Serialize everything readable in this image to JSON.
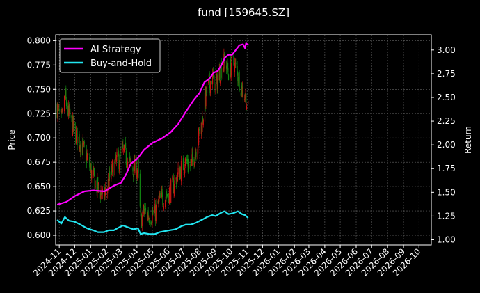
{
  "chart_data": {
    "type": "candlestick-line",
    "title": "fund [159645.SZ]",
    "xlabel": "",
    "ylabel_left": "Price",
    "ylabel_right": "Return",
    "xlim": [
      "2024-10-25",
      "2026-10-25"
    ],
    "ylim_left": [
      0.59,
      0.806
    ],
    "ylim_right": [
      0.945,
      3.16
    ],
    "x_ticks": [
      "2024-11",
      "2024-12",
      "2025-01",
      "2025-02",
      "2025-03",
      "2025-04",
      "2025-05",
      "2025-06",
      "2025-07",
      "2025-08",
      "2025-09",
      "2025-10",
      "2025-11",
      "2025-12",
      "2026-01",
      "2026-02",
      "2026-03",
      "2026-04",
      "2026-05",
      "2026-06",
      "2026-07",
      "2026-08",
      "2026-09",
      "2026-10"
    ],
    "y_ticks_left": [
      "0.600",
      "0.625",
      "0.650",
      "0.675",
      "0.700",
      "0.725",
      "0.750",
      "0.775",
      "0.800"
    ],
    "y_ticks_right": [
      "1.00",
      "1.25",
      "1.50",
      "1.75",
      "2.00",
      "2.25",
      "2.50",
      "2.75",
      "3.00"
    ],
    "grid": true,
    "legend_position": "top-left",
    "colors": {
      "background": "#000000",
      "up": "#cc1111",
      "down": "#118811",
      "ai": "#ff00ff",
      "bh": "#22e5f0",
      "grid": "#666666"
    },
    "price_close_anchors": [
      [
        "2024-10-28",
        0.732
      ],
      [
        "2024-11-05",
        0.715
      ],
      [
        "2024-11-12",
        0.742
      ],
      [
        "2024-11-20",
        0.722
      ],
      [
        "2024-12-01",
        0.706
      ],
      [
        "2024-12-12",
        0.695
      ],
      [
        "2024-12-25",
        0.68
      ],
      [
        "2025-01-06",
        0.658
      ],
      [
        "2025-01-15",
        0.648
      ],
      [
        "2025-01-27",
        0.64
      ],
      [
        "2025-02-05",
        0.655
      ],
      [
        "2025-02-15",
        0.672
      ],
      [
        "2025-02-25",
        0.678
      ],
      [
        "2025-03-05",
        0.685
      ],
      [
        "2025-03-15",
        0.675
      ],
      [
        "2025-03-25",
        0.668
      ],
      [
        "2025-04-03",
        0.668
      ],
      [
        "2025-04-08",
        0.615
      ],
      [
        "2025-04-15",
        0.624
      ],
      [
        "2025-04-25",
        0.62
      ],
      [
        "2025-05-06",
        0.622
      ],
      [
        "2025-05-15",
        0.635
      ],
      [
        "2025-05-25",
        0.64
      ],
      [
        "2025-06-03",
        0.645
      ],
      [
        "2025-06-15",
        0.655
      ],
      [
        "2025-06-25",
        0.668
      ],
      [
        "2025-07-05",
        0.676
      ],
      [
        "2025-07-15",
        0.67
      ],
      [
        "2025-07-25",
        0.69
      ],
      [
        "2025-08-05",
        0.715
      ],
      [
        "2025-08-15",
        0.75
      ],
      [
        "2025-08-25",
        0.762
      ],
      [
        "2025-09-01",
        0.752
      ],
      [
        "2025-09-10",
        0.77
      ],
      [
        "2025-09-18",
        0.778
      ],
      [
        "2025-09-26",
        0.768
      ],
      [
        "2025-10-05",
        0.778
      ],
      [
        "2025-10-14",
        0.765
      ],
      [
        "2025-10-22",
        0.75
      ],
      [
        "2025-10-28",
        0.744
      ],
      [
        "2025-11-03",
        0.728
      ]
    ],
    "series": [
      {
        "name": "AI Strategy",
        "color": "#ff00ff",
        "points": [
          [
            "2024-10-28",
            1.37
          ],
          [
            "2024-11-15",
            1.4
          ],
          [
            "2024-12-01",
            1.46
          ],
          [
            "2024-12-20",
            1.51
          ],
          [
            "2025-01-06",
            1.52
          ],
          [
            "2025-01-28",
            1.51
          ],
          [
            "2025-02-03",
            1.53
          ],
          [
            "2025-02-15",
            1.57
          ],
          [
            "2025-03-01",
            1.6
          ],
          [
            "2025-03-10",
            1.68
          ],
          [
            "2025-03-20",
            1.8
          ],
          [
            "2025-04-01",
            1.85
          ],
          [
            "2025-04-15",
            1.95
          ],
          [
            "2025-05-01",
            2.02
          ],
          [
            "2025-05-20",
            2.07
          ],
          [
            "2025-06-05",
            2.13
          ],
          [
            "2025-06-20",
            2.22
          ],
          [
            "2025-07-05",
            2.35
          ],
          [
            "2025-07-20",
            2.47
          ],
          [
            "2025-08-01",
            2.55
          ],
          [
            "2025-08-10",
            2.66
          ],
          [
            "2025-08-20",
            2.7
          ],
          [
            "2025-08-28",
            2.76
          ],
          [
            "2025-09-05",
            2.78
          ],
          [
            "2025-09-12",
            2.84
          ],
          [
            "2025-09-19",
            2.92
          ],
          [
            "2025-09-26",
            2.95
          ],
          [
            "2025-10-03",
            2.95
          ],
          [
            "2025-10-10",
            3.0
          ],
          [
            "2025-10-17",
            3.05
          ],
          [
            "2025-10-24",
            3.06
          ],
          [
            "2025-10-28",
            3.02
          ],
          [
            "2025-10-30",
            3.07
          ],
          [
            "2025-11-04",
            3.05
          ]
        ]
      },
      {
        "name": "Buy-and-Hold",
        "color": "#22e5f0",
        "points": [
          [
            "2024-10-28",
            1.21
          ],
          [
            "2024-11-05",
            1.17
          ],
          [
            "2024-11-12",
            1.24
          ],
          [
            "2024-11-20",
            1.2
          ],
          [
            "2024-12-01",
            1.19
          ],
          [
            "2024-12-12",
            1.16
          ],
          [
            "2024-12-25",
            1.12
          ],
          [
            "2025-01-06",
            1.1
          ],
          [
            "2025-01-15",
            1.08
          ],
          [
            "2025-01-27",
            1.08
          ],
          [
            "2025-02-05",
            1.1
          ],
          [
            "2025-02-15",
            1.1
          ],
          [
            "2025-02-25",
            1.13
          ],
          [
            "2025-03-05",
            1.15
          ],
          [
            "2025-03-15",
            1.13
          ],
          [
            "2025-03-25",
            1.11
          ],
          [
            "2025-04-03",
            1.12
          ],
          [
            "2025-04-08",
            1.06
          ],
          [
            "2025-04-15",
            1.07
          ],
          [
            "2025-04-25",
            1.06
          ],
          [
            "2025-05-06",
            1.06
          ],
          [
            "2025-05-15",
            1.08
          ],
          [
            "2025-05-25",
            1.09
          ],
          [
            "2025-06-03",
            1.1
          ],
          [
            "2025-06-15",
            1.11
          ],
          [
            "2025-06-25",
            1.14
          ],
          [
            "2025-07-05",
            1.16
          ],
          [
            "2025-07-15",
            1.16
          ],
          [
            "2025-07-25",
            1.18
          ],
          [
            "2025-08-05",
            1.21
          ],
          [
            "2025-08-15",
            1.24
          ],
          [
            "2025-08-25",
            1.26
          ],
          [
            "2025-09-01",
            1.25
          ],
          [
            "2025-09-10",
            1.28
          ],
          [
            "2025-09-18",
            1.3
          ],
          [
            "2025-09-26",
            1.27
          ],
          [
            "2025-10-05",
            1.28
          ],
          [
            "2025-10-14",
            1.3
          ],
          [
            "2025-10-22",
            1.27
          ],
          [
            "2025-10-28",
            1.26
          ],
          [
            "2025-11-03",
            1.23
          ]
        ]
      }
    ]
  }
}
